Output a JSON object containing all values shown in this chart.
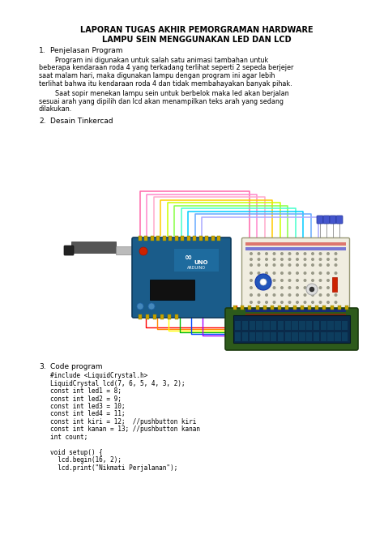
{
  "title1": "LAPORAN TUGAS AKHIR PEMORGRAMAN HARDWARE",
  "title2": "LAMPU SEIN MENGGUNAKAN LED DAN LCD",
  "sec1_label": "1.",
  "sec1_header": "Penjelasan Program",
  "sec1_para1_indent": "        Program ini digunakan untuk salah satu animasi tambahan untuk",
  "sec1_para1_lines": [
    "        Program ini digunakan untuk salah satu animasi tambahan untuk",
    "beberapa kendaraan roda 4 yang terkadang terlihat seperti 2 sepeda berjejer",
    "saat malam hari, maka digunakan lampu dengan program ini agar lebih",
    "terlihat bahwa itu kendaraan roda 4 dan tidak membahayakan banyak pihak."
  ],
  "sec1_para2_lines": [
    "        Saat sopir menekan lampu sein untuk berbelok maka led akan berjalan",
    "sesuai arah yang dipilih dan lcd akan menampilkan teks arah yang sedang",
    "dilakukan."
  ],
  "sec2_label": "2.",
  "sec2_header": "Desain Tinkercad",
  "sec3_label": "3.",
  "sec3_header": "Code program",
  "code_lines": [
    "#include <LiquidCrystal.h>",
    "LiquidCrystal lcd(7, 6, 5, 4, 3, 2);",
    "const int led1 = 8;",
    "const int led2 = 9;",
    "const int led3 = 10;",
    "const int led4 = 11;",
    "const int kiri = 12;  //pushbutton kiri",
    "const int kanan = 13; //pushbutton kanan",
    "int count;",
    "",
    "void setup() {",
    "  lcd.begin(16, 2);",
    "  lcd.print(\"Nikmati Perjalanan\");"
  ],
  "bg_color": "#ffffff",
  "text_color": "#000000",
  "wire_colors_top": [
    "#ff66aa",
    "#ff88cc",
    "#ffaacc",
    "#ffcc00",
    "#ccff00",
    "#88ff44",
    "#44ffcc",
    "#00ccff",
    "#66aaff",
    "#aaaaff"
  ],
  "wire_colors_bottom": [
    "#ff0000",
    "#ff8800",
    "#ffff00",
    "#00bb00",
    "#0044ff",
    "#aa00ff"
  ],
  "arduino_color": "#1a5c8a",
  "breadboard_color": "#f0ede0",
  "lcd_green": "#2d5a1b",
  "lcd_screen": "#0a2a4a"
}
